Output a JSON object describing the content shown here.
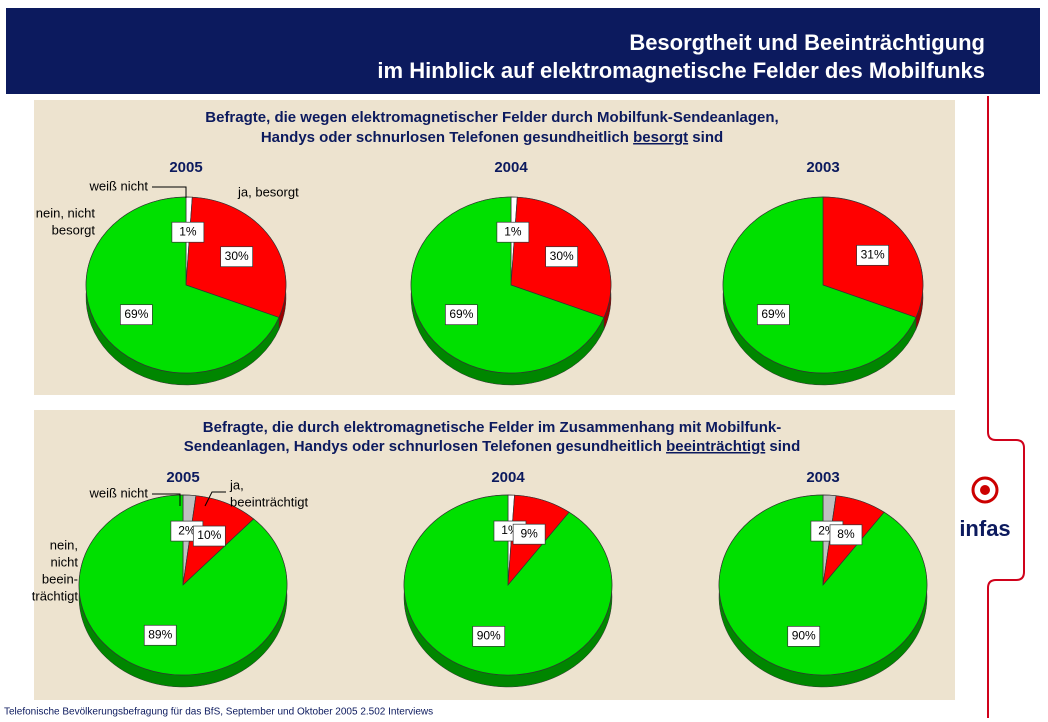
{
  "header": {
    "title": [
      "Besorgtheit und Beeinträchtigung",
      "im Hinblick auf elektromagnetische Felder des Mobilfunks"
    ]
  },
  "panels": [
    {
      "title": [
        "Befragte, die wegen elektromagnetischer Felder durch Mobilfunk-Sendeanlagen,",
        "Handys oder schnurlosen Telefonen gesundheitlich "
      ],
      "emphasis": "besorgt",
      "title_end": " sind"
    },
    {
      "title": [
        "Befragte, die durch elektromagnetische Felder im Zusammenhang mit Mobilfunk-",
        "Sendeanlagen, Handys oder schnurlosen Telefonen gesundheitlich "
      ],
      "emphasis": "beeinträchtigt",
      "title_end": " sind"
    }
  ],
  "chart_data": [
    {
      "type": "pie",
      "title": "2005",
      "categories": [
        [
          "weiß nicht"
        ],
        [
          "ja, besorgt"
        ],
        [
          "nein, nicht",
          "besorgt"
        ]
      ],
      "values": [
        1,
        30,
        69
      ],
      "value_labels": [
        "1%",
        "30%",
        "69%"
      ],
      "colors": [
        "#ffffff",
        "#ff0000",
        "#00e000"
      ]
    },
    {
      "type": "pie",
      "title": "2004",
      "values": [
        1,
        30,
        69
      ],
      "value_labels": [
        "1%",
        "30%",
        "69%"
      ],
      "colors": [
        "#ffffff",
        "#ff0000",
        "#00e000"
      ]
    },
    {
      "type": "pie",
      "title": "2003",
      "values": [
        31,
        69
      ],
      "value_labels": [
        "31%",
        "69%"
      ],
      "colors": [
        "#ff0000",
        "#00e000"
      ]
    },
    {
      "type": "pie",
      "title": "2005",
      "categories": [
        [
          "weiß nicht"
        ],
        [
          "ja,",
          "beeinträchtigt"
        ],
        [
          "nein,",
          "nicht",
          "beein-",
          "trächtigt"
        ]
      ],
      "values": [
        2,
        10,
        89
      ],
      "value_labels": [
        "2%",
        "10%",
        "89%"
      ],
      "colors": [
        "#c0c0c0",
        "#ff0000",
        "#00e000"
      ]
    },
    {
      "type": "pie",
      "title": "2004",
      "values": [
        1,
        9,
        90
      ],
      "value_labels": [
        "1%",
        "9%",
        "90%"
      ],
      "colors": [
        "#ffffff",
        "#ff0000",
        "#00e000"
      ]
    },
    {
      "type": "pie",
      "title": "2003",
      "values": [
        2,
        8,
        90
      ],
      "value_labels": [
        "2%",
        "8%",
        "90%"
      ],
      "colors": [
        "#c0c0c0",
        "#ff0000",
        "#00e000"
      ]
    }
  ],
  "logo": "infas",
  "footer": "Telefonische Bevölkerungsbefragung für das BfS, September und Oktober 2005 2.502 Interviews"
}
